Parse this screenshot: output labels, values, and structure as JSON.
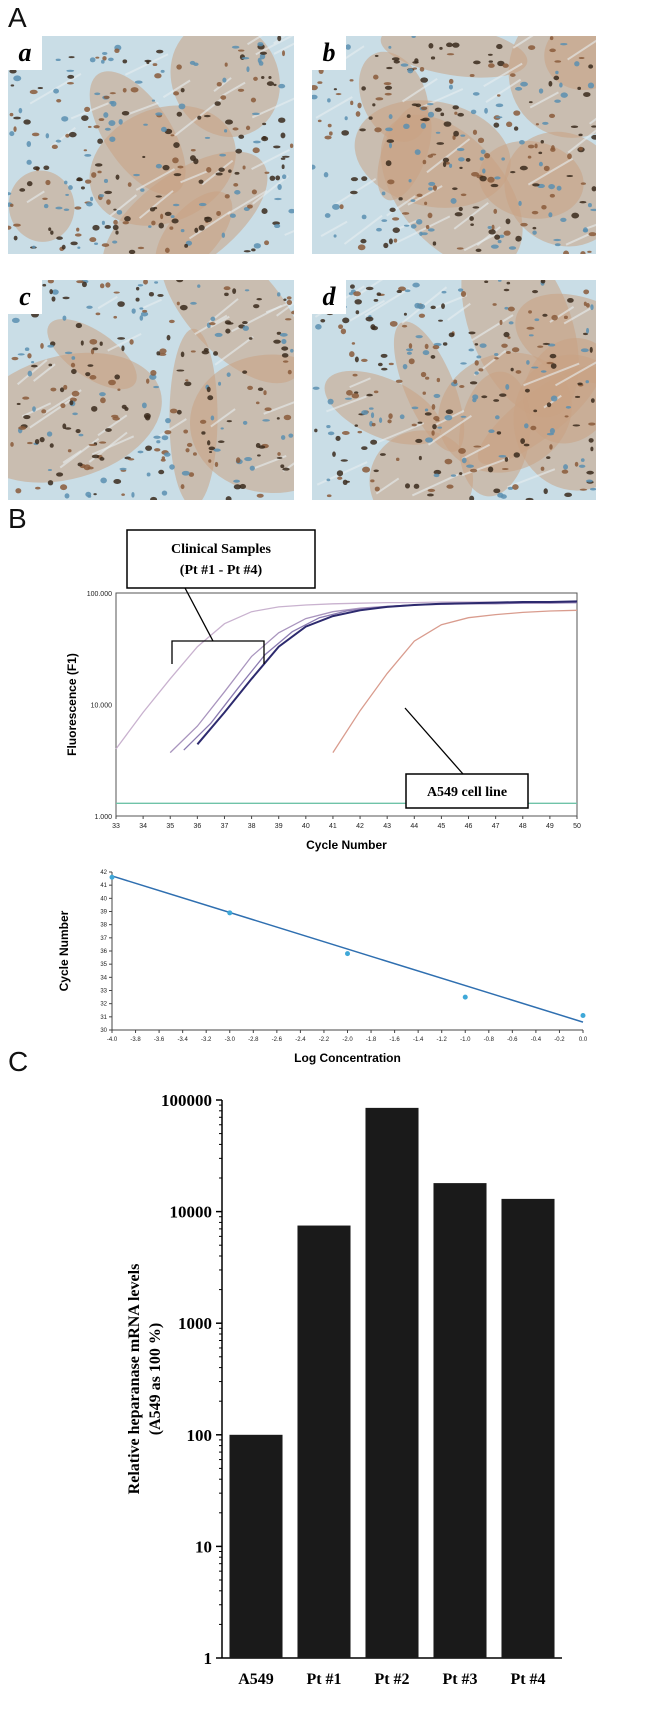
{
  "panels": {
    "A": {
      "letter": "A",
      "images": [
        {
          "label": "a"
        },
        {
          "label": "b"
        },
        {
          "label": "c"
        },
        {
          "label": "d"
        }
      ]
    },
    "B": {
      "letter": "B"
    },
    "C": {
      "letter": "C"
    }
  },
  "chart_data": [
    {
      "type": "line",
      "ylabel": "Fluorescence (F1)",
      "xlabel": "Cycle Number",
      "xlim": [
        33,
        50
      ],
      "ylim": [
        1,
        100
      ],
      "y_scale": "log",
      "x_ticks": [
        "33",
        "34",
        "35",
        "36",
        "37",
        "38",
        "39",
        "40",
        "41",
        "42",
        "43",
        "44",
        "45",
        "46",
        "47",
        "48",
        "49",
        "50"
      ],
      "y_ticks": [
        "100.000",
        "10.000",
        "1.000"
      ],
      "annotations": [
        "Clinical Samples",
        "(Pt #1 - Pt #4)",
        "A549 cell line"
      ],
      "series": [
        {
          "color": "#c9b2cf",
          "x": [
            33,
            34,
            35,
            36,
            37,
            38,
            39,
            40,
            41,
            42,
            43,
            44,
            45,
            46,
            47,
            48,
            49,
            50
          ],
          "y": [
            4.0,
            8.5,
            17,
            33,
            53,
            68,
            75,
            78,
            80,
            81,
            82,
            82,
            83,
            83,
            83,
            83,
            83,
            84
          ]
        },
        {
          "color": "#a995be",
          "x": [
            35,
            36,
            37,
            38,
            39,
            40,
            41,
            42,
            43,
            44,
            45,
            46,
            47,
            48,
            49,
            50
          ],
          "y": [
            3.7,
            6.4,
            13,
            27,
            44,
            59,
            68,
            73,
            76,
            78,
            79,
            80,
            80,
            81,
            81,
            82
          ]
        },
        {
          "color": "#8a7ab0",
          "x": [
            35.5,
            36.5,
            37.5,
            38.5,
            39.5,
            40.5,
            41.5,
            42.5,
            43.5,
            44.5,
            45.5,
            46.5,
            47.5,
            48.5,
            49.5,
            50
          ],
          "y": [
            3.9,
            6.8,
            14,
            28,
            45,
            60,
            69,
            74,
            77,
            79,
            80,
            81,
            81,
            82,
            82,
            82
          ]
        },
        {
          "color": "#2d2a6e",
          "x": [
            36,
            37,
            38,
            39,
            40,
            41,
            42,
            43,
            44,
            45,
            46,
            47,
            48,
            49,
            50
          ],
          "y": [
            4.4,
            8.5,
            17,
            33,
            50,
            62,
            70,
            75,
            78,
            80,
            81,
            82,
            83,
            83,
            84
          ]
        },
        {
          "color": "#d99c8e",
          "x": [
            41,
            42,
            43,
            44,
            45,
            46,
            47,
            48,
            49,
            50
          ],
          "y": [
            3.7,
            8.8,
            19,
            37,
            52,
            60,
            64,
            67,
            69,
            70
          ]
        },
        {
          "color": "#6fc3a8",
          "x": [
            33,
            50
          ],
          "y": [
            1.3,
            1.3
          ]
        }
      ]
    },
    {
      "type": "scatter",
      "ylabel": "Cycle Number",
      "xlabel": "Log Concentration",
      "xlim": [
        -4.0,
        0.0
      ],
      "ylim": [
        30,
        42
      ],
      "x_ticks": [
        "-4.0",
        "-3.8",
        "-3.6",
        "-3.4",
        "-3.2",
        "-3.0",
        "-2.8",
        "-2.6",
        "-2.4",
        "-2.2",
        "-2.0",
        "-1.8",
        "-1.6",
        "-1.4",
        "-1.2",
        "-1.0",
        "-0.8",
        "-0.6",
        "-0.4",
        "-0.2",
        "0.0"
      ],
      "y_ticks": [
        "42",
        "41",
        "40",
        "39",
        "38",
        "37",
        "36",
        "35",
        "34",
        "33",
        "32",
        "31",
        "30"
      ],
      "points": {
        "x": [
          -4.0,
          -3.0,
          -2.0,
          -1.0,
          0.0
        ],
        "y": [
          41.6,
          38.9,
          35.8,
          32.5,
          31.1
        ]
      },
      "fit_line": {
        "x": [
          -4.0,
          0.0
        ],
        "y": [
          41.7,
          30.6
        ]
      },
      "colors": {
        "points": "#3fa8d8",
        "fit": "#2f6fb0"
      }
    },
    {
      "type": "bar",
      "ylabel": "Relative heparanase mRNA levels",
      "ylabel2": "(A549 as 100 %)",
      "y_scale": "log",
      "ylim": [
        1,
        100000
      ],
      "y_ticks": [
        "100000",
        "10000",
        "1000",
        "100",
        "10",
        "1"
      ],
      "categories": [
        "A549",
        "Pt #1",
        "Pt #2",
        "Pt #3",
        "Pt #4"
      ],
      "values": [
        100,
        7500,
        85000,
        18000,
        13000
      ],
      "colors": {
        "bar": "#1a1a1a"
      }
    }
  ]
}
